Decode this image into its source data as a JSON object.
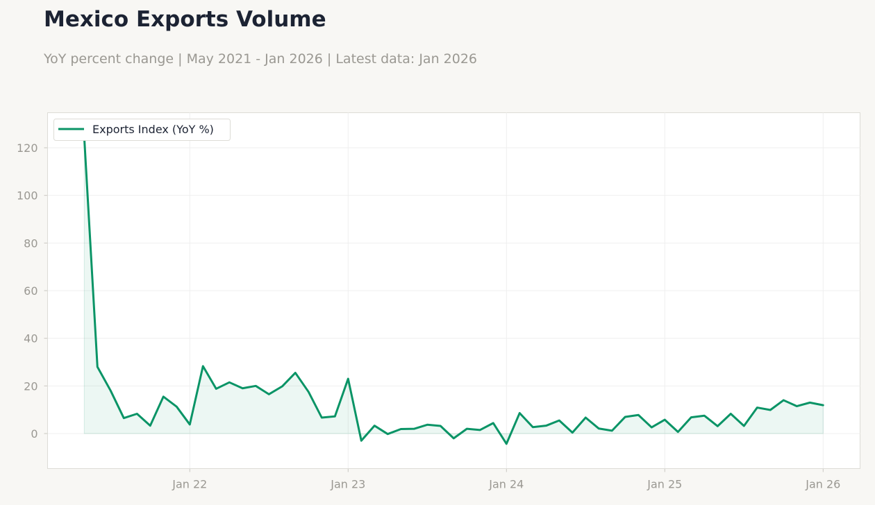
{
  "header": {
    "title": "Mexico Exports Volume",
    "subtitle": "YoY percent change | May 2021 - Jan 2026 | Latest data: Jan 2026"
  },
  "colors": {
    "background": "#f8f7f4",
    "plot_background": "#ffffff",
    "line": "#0a9466",
    "fill": "#0a9466",
    "grid": "#efefef",
    "axis_text": "#9a9892",
    "title_text": "#1c2333"
  },
  "chart_data": {
    "type": "area",
    "title": "Mexico Exports Volume",
    "subtitle": "YoY percent change | May 2021 - Jan 2026 | Latest data: Jan 2026",
    "xlabel": "",
    "ylabel": "",
    "x_start": "2021-05",
    "x_end": "2026-01",
    "ylim": [
      -14.5,
      135
    ],
    "yticks": [
      0,
      20,
      40,
      60,
      80,
      100,
      120
    ],
    "xticks": [
      {
        "date": "2022-01",
        "label": "Jan 22"
      },
      {
        "date": "2023-01",
        "label": "Jan 23"
      },
      {
        "date": "2024-01",
        "label": "Jan 24"
      },
      {
        "date": "2025-01",
        "label": "Jan 25"
      },
      {
        "date": "2026-01",
        "label": "Jan 26"
      }
    ],
    "grid": true,
    "legend": {
      "position": "top-left"
    },
    "series": [
      {
        "name": "Exports Index (YoY %)",
        "x": [
          "2021-05",
          "2021-06",
          "2021-07",
          "2021-08",
          "2021-09",
          "2021-10",
          "2021-11",
          "2021-12",
          "2022-01",
          "2022-02",
          "2022-03",
          "2022-04",
          "2022-05",
          "2022-06",
          "2022-07",
          "2022-08",
          "2022-09",
          "2022-10",
          "2022-11",
          "2022-12",
          "2023-01",
          "2023-02",
          "2023-03",
          "2023-04",
          "2023-05",
          "2023-06",
          "2023-07",
          "2023-08",
          "2023-09",
          "2023-10",
          "2023-11",
          "2023-12",
          "2024-01",
          "2024-02",
          "2024-03",
          "2024-04",
          "2024-05",
          "2024-06",
          "2024-07",
          "2024-08",
          "2024-09",
          "2024-10",
          "2024-11",
          "2024-12",
          "2025-01",
          "2025-02",
          "2025-03",
          "2025-04",
          "2025-05",
          "2025-06",
          "2025-07",
          "2025-08",
          "2025-09",
          "2025-10",
          "2025-11",
          "2025-12",
          "2026-01"
        ],
        "values": [
          124.5,
          28,
          18,
          6.5,
          8.3,
          3.3,
          15.5,
          11.3,
          3.8,
          28.3,
          18.8,
          21.5,
          19,
          20,
          16.5,
          19.8,
          25.5,
          17.5,
          6.7,
          7.2,
          23,
          -3,
          3.3,
          -0.2,
          1.9,
          2,
          3.7,
          3.2,
          -2,
          2,
          1.5,
          4.4,
          -4.3,
          8.6,
          2.7,
          3.3,
          5.5,
          0.4,
          6.7,
          2.1,
          1.2,
          7,
          7.8,
          2.6,
          5.8,
          0.7,
          6.8,
          7.5,
          3.1,
          8.3,
          3.2,
          10.9,
          9.9,
          14,
          11.5,
          13,
          11.9
        ]
      }
    ]
  }
}
